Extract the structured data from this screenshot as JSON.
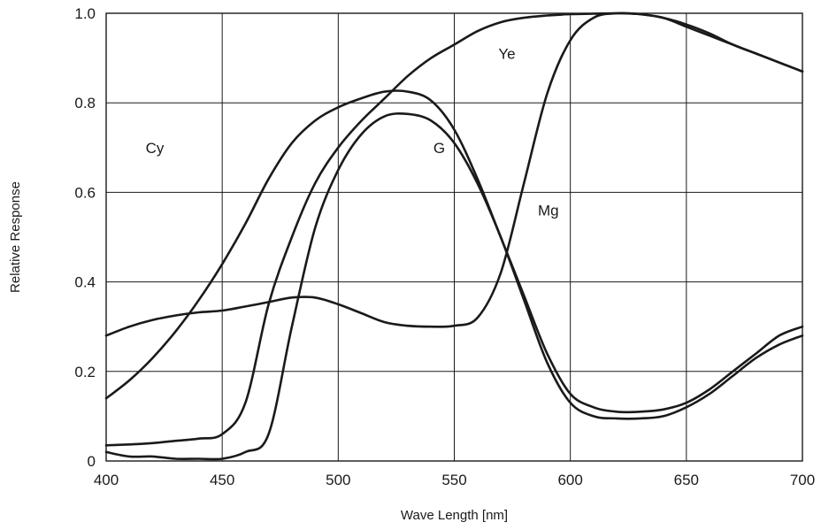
{
  "chart_data": {
    "type": "line",
    "title": "",
    "xlabel": "Wave Length [nm]",
    "ylabel": "Relative Response",
    "xlim": [
      400,
      700
    ],
    "ylim": [
      0,
      1.0
    ],
    "x_ticks": [
      "400",
      "450",
      "500",
      "550",
      "600",
      "650",
      "700"
    ],
    "y_ticks": [
      "0",
      "0.2",
      "0.4",
      "0.6",
      "0.8",
      "1.0"
    ],
    "grid": true,
    "x": [
      400,
      410,
      420,
      430,
      440,
      450,
      460,
      470,
      480,
      490,
      500,
      510,
      520,
      530,
      540,
      550,
      560,
      570,
      580,
      590,
      600,
      610,
      620,
      630,
      640,
      650,
      660,
      670,
      680,
      690,
      700
    ],
    "series": [
      {
        "name": "Cy",
        "label_at": [
          417,
          0.7
        ],
        "values": [
          0.14,
          0.18,
          0.23,
          0.29,
          0.36,
          0.44,
          0.53,
          0.63,
          0.71,
          0.76,
          0.79,
          0.81,
          0.825,
          0.825,
          0.805,
          0.74,
          0.63,
          0.5,
          0.37,
          0.24,
          0.15,
          0.12,
          0.11,
          0.11,
          0.115,
          0.13,
          0.16,
          0.2,
          0.24,
          0.28,
          0.3
        ]
      },
      {
        "name": "G",
        "label_at": [
          541,
          0.7
        ],
        "values": [
          0.02,
          0.01,
          0.01,
          0.005,
          0.005,
          0.005,
          0.02,
          0.06,
          0.3,
          0.52,
          0.65,
          0.73,
          0.77,
          0.775,
          0.76,
          0.71,
          0.62,
          0.5,
          0.36,
          0.22,
          0.13,
          0.1,
          0.095,
          0.095,
          0.1,
          0.12,
          0.15,
          0.19,
          0.23,
          0.26,
          0.28
        ]
      },
      {
        "name": "Ye",
        "label_at": [
          569,
          0.91
        ],
        "values": [
          0.035,
          0.037,
          0.04,
          0.045,
          0.05,
          0.06,
          0.13,
          0.35,
          0.5,
          0.62,
          0.7,
          0.76,
          0.81,
          0.86,
          0.9,
          0.93,
          0.96,
          0.98,
          0.99,
          0.995,
          0.998,
          0.999,
          1.0,
          0.998,
          0.99,
          0.97,
          0.95,
          0.93,
          0.91,
          0.89,
          0.87
        ]
      },
      {
        "name": "Mg",
        "label_at": [
          586,
          0.56
        ],
        "values": [
          0.28,
          0.3,
          0.315,
          0.325,
          0.332,
          0.336,
          0.345,
          0.355,
          0.365,
          0.365,
          0.35,
          0.33,
          0.31,
          0.302,
          0.3,
          0.302,
          0.32,
          0.42,
          0.62,
          0.82,
          0.94,
          0.99,
          1.0,
          0.998,
          0.99,
          0.975,
          0.955,
          0.93,
          0.91,
          0.89,
          0.87
        ]
      }
    ]
  }
}
